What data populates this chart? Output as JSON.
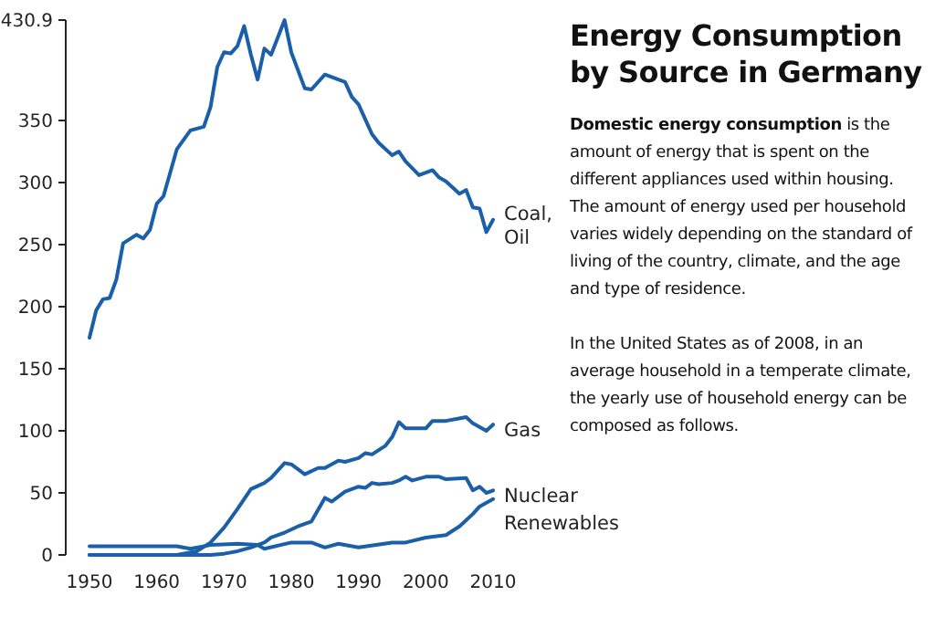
{
  "chart_data": {
    "type": "line",
    "title": "Energy Consumption by Source in Germany",
    "annotations": [
      "Domestic energy consumption",
      " is the amount of energy that is spent on the different appliances used within housing. The amount of energy used per household varies widely depending on the standard of living of the country, climate, and the age and type of residence.",
      "In the United States as of 2008, in an average household in a temperate climate, the yearly use of household energy can be composed as follows."
    ],
    "xlim": [
      1950,
      2010
    ],
    "xticks": [
      1950,
      1960,
      1970,
      1980,
      1990,
      2000,
      2010
    ],
    "ylim": [
      0,
      430.9
    ],
    "yticks": [
      0,
      50,
      100,
      150,
      200,
      250,
      300,
      350,
      430.9
    ],
    "grid": false,
    "marker": "none",
    "line_style": "solid",
    "series": [
      {
        "name": "Coal, Oil",
        "color": "#1a5fa8",
        "x": [
          1950,
          1951,
          1952,
          1953,
          1954,
          1955,
          1957,
          1958,
          1959,
          1960,
          1961,
          1963,
          1965,
          1967,
          1968,
          1969,
          1970,
          1971,
          1972,
          1973,
          1974,
          1975,
          1976,
          1977,
          1979,
          1980,
          1982,
          1983,
          1985,
          1988,
          1989,
          1990,
          1992,
          1993,
          1995,
          1996,
          1997,
          1999,
          2001,
          2002,
          2003,
          2005,
          2006,
          2007,
          2008,
          2009,
          2010
        ],
        "values": [
          175,
          197,
          206,
          207,
          222,
          251,
          258,
          255,
          262,
          283,
          289,
          327,
          342,
          345,
          361,
          393,
          405,
          404,
          410,
          426,
          403,
          383,
          408,
          403,
          430.9,
          405,
          376,
          375,
          387,
          381,
          369,
          363,
          339,
          332,
          322,
          325,
          317,
          306,
          310,
          304,
          301,
          291,
          294,
          280,
          279,
          260,
          270
        ]
      },
      {
        "name": "Gas",
        "color": "#1a5fa8",
        "x": [
          1950,
          1963,
          1966,
          1968,
          1970,
          1972,
          1974,
          1976,
          1977,
          1979,
          1980,
          1981,
          1982,
          1984,
          1985,
          1987,
          1988,
          1990,
          1991,
          1992,
          1994,
          1995,
          1996,
          1997,
          2000,
          2001,
          2003,
          2006,
          2007,
          2009,
          2010
        ],
        "values": [
          0,
          0,
          3,
          10,
          22,
          37,
          53,
          58,
          62,
          74,
          73,
          69,
          65,
          70,
          70,
          76,
          75,
          78,
          82,
          81,
          88,
          95,
          107,
          102,
          102,
          108,
          108,
          111,
          106,
          100,
          105
        ]
      },
      {
        "name": "Nuclear",
        "color": "#1a5fa8",
        "x": [
          1950,
          1968,
          1970,
          1972,
          1974,
          1976,
          1977,
          1979,
          1981,
          1983,
          1985,
          1986,
          1987,
          1988,
          1990,
          1991,
          1992,
          1993,
          1995,
          1996,
          1997,
          1998,
          2000,
          2002,
          2003,
          2006,
          2007,
          2008,
          2009,
          2010
        ],
        "values": [
          0,
          0,
          1,
          3,
          6,
          10,
          14,
          18,
          23,
          27,
          46,
          43,
          47,
          51,
          55,
          54,
          58,
          57,
          58,
          60,
          63,
          60,
          63,
          63,
          61,
          62,
          52,
          55,
          50,
          52
        ]
      },
      {
        "name": "Renewables",
        "color": "#1a5fa8",
        "x": [
          1950,
          1963,
          1965,
          1968,
          1972,
          1975,
          1976,
          1980,
          1983,
          1985,
          1987,
          1990,
          1995,
          1997,
          2000,
          2003,
          2005,
          2007,
          2008,
          2010
        ],
        "values": [
          7,
          7,
          5,
          8,
          9,
          8,
          5,
          10,
          10,
          6,
          9,
          6,
          10,
          10,
          14,
          16,
          23,
          33,
          39,
          45
        ]
      }
    ]
  }
}
